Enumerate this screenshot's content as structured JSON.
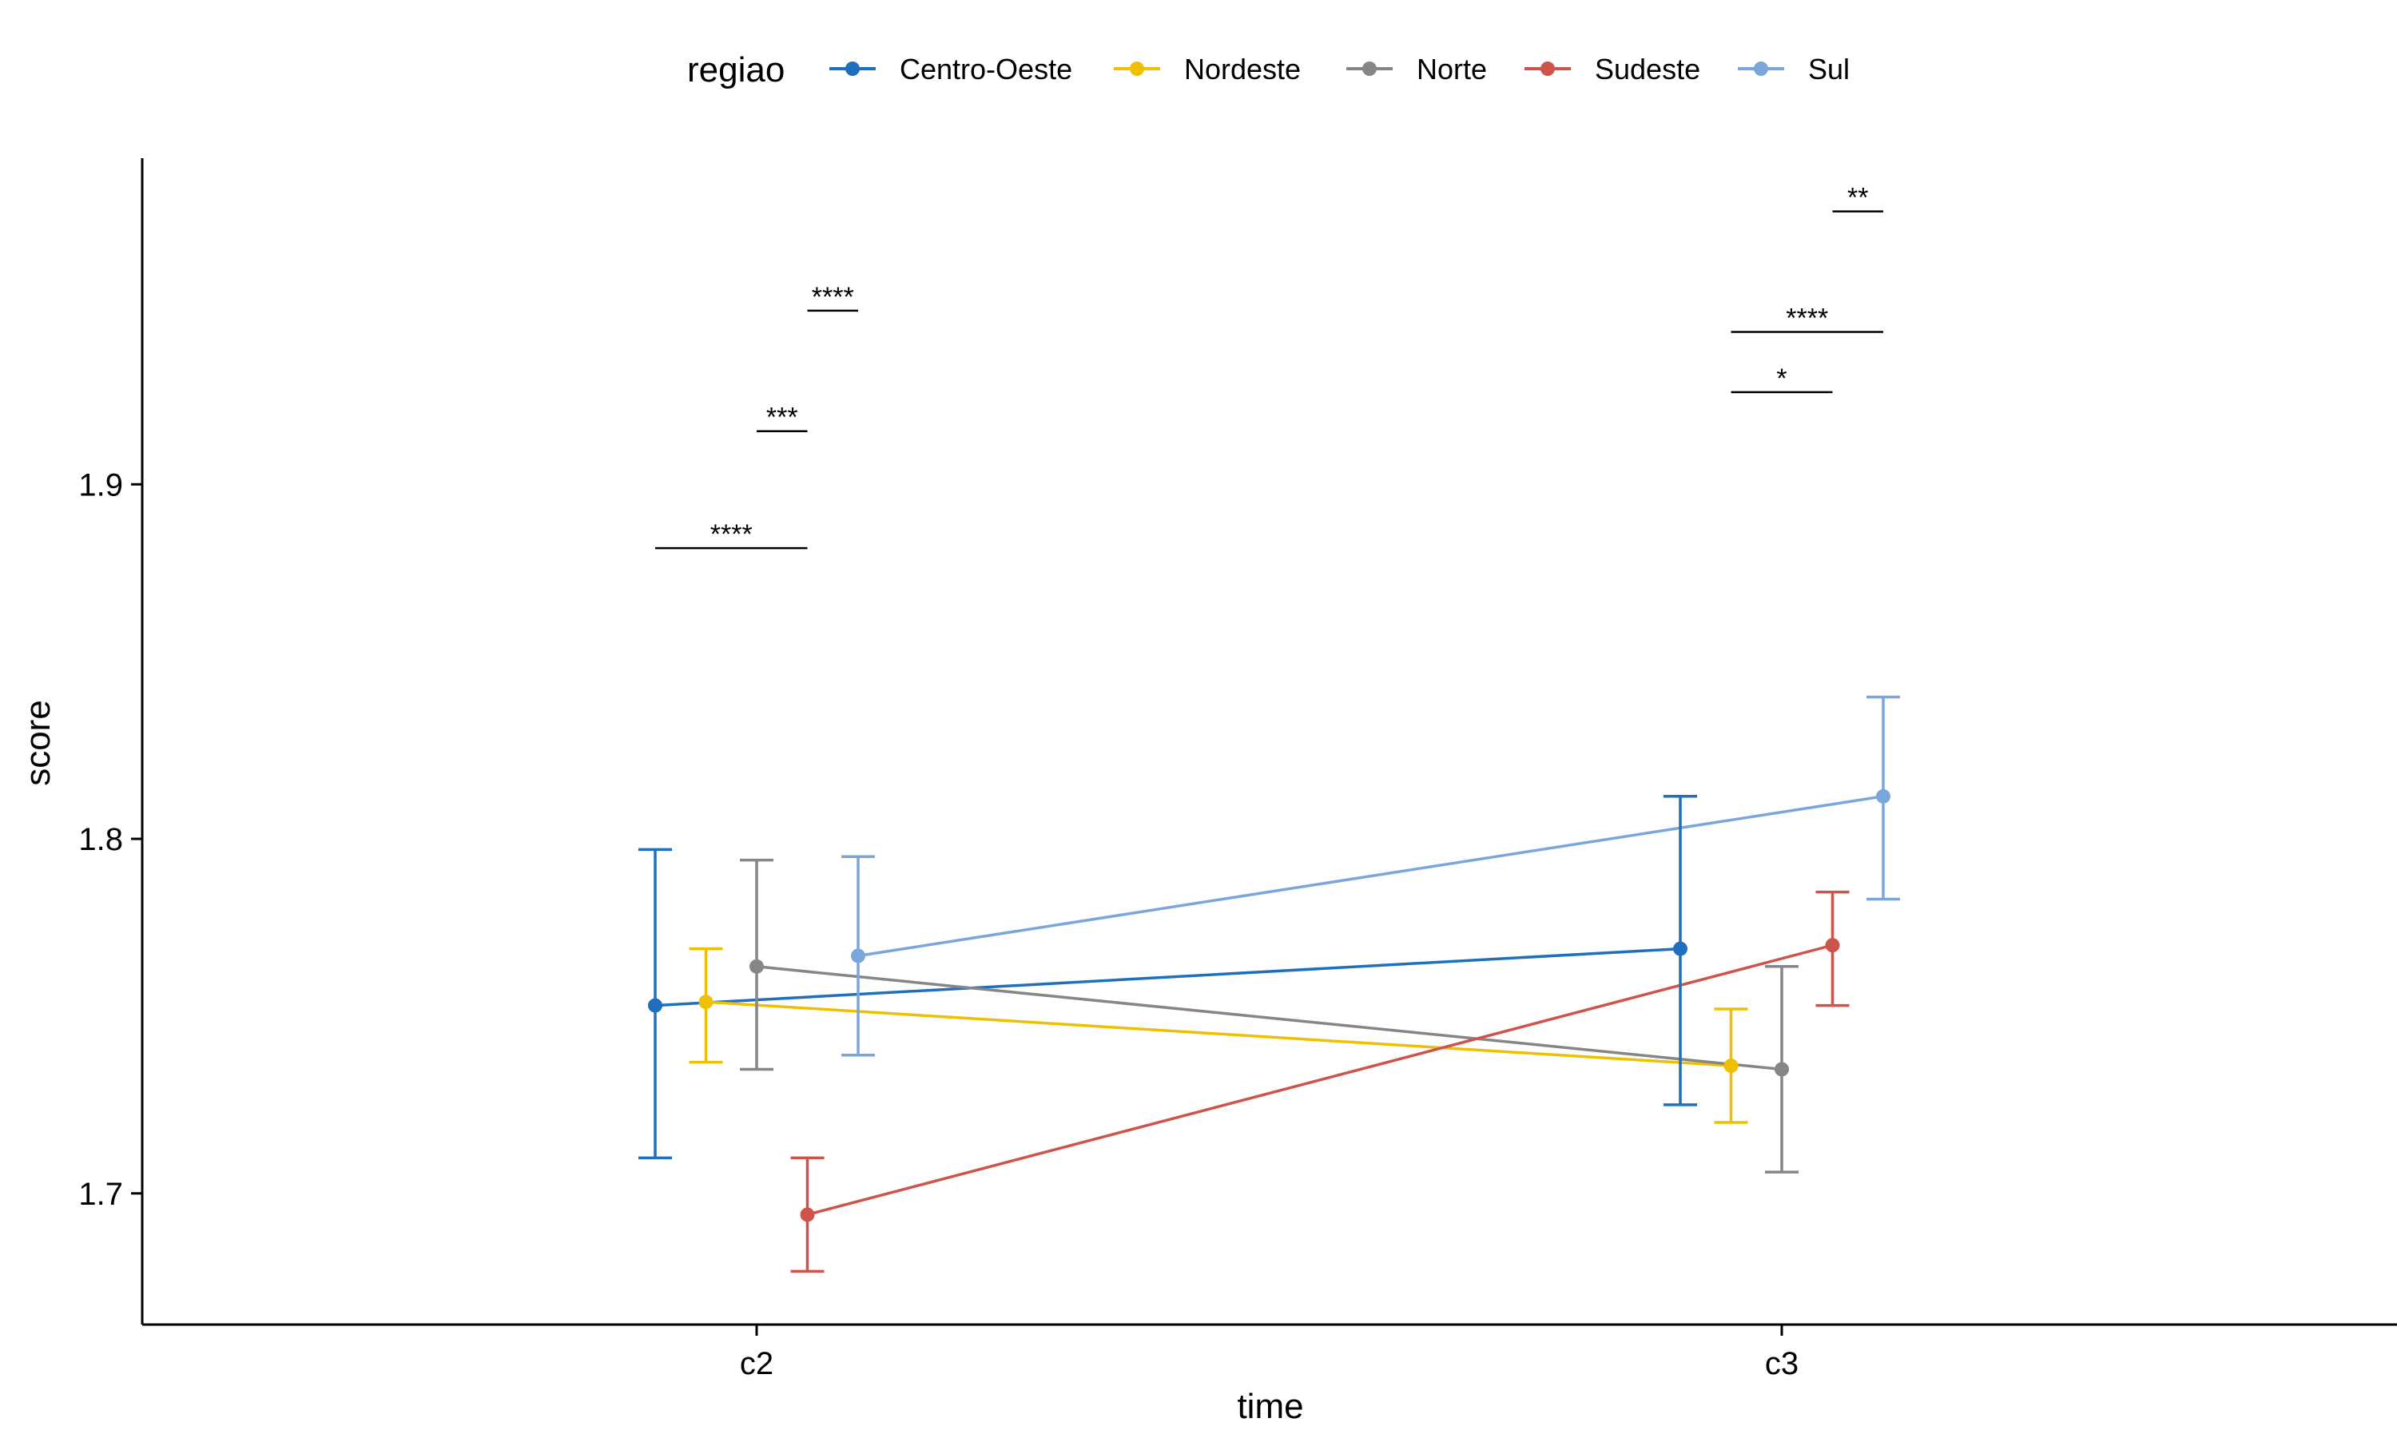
{
  "legend": {
    "title": "regiao"
  },
  "chart_data": {
    "type": "line",
    "xlabel": "time",
    "ylabel": "score",
    "categories": [
      "c2",
      "c3"
    ],
    "ylim": [
      1.663,
      1.992
    ],
    "yticks": [
      1.7,
      1.8,
      1.9
    ],
    "grid": false,
    "legend_position": "top",
    "series": [
      {
        "name": "Centro-Oeste",
        "color": "#1f6fbd",
        "values": [
          1.753,
          1.769
        ],
        "err_low": [
          1.71,
          1.725
        ],
        "err_high": [
          1.797,
          1.812
        ]
      },
      {
        "name": "Nordeste",
        "color": "#efc000",
        "values": [
          1.754,
          1.736
        ],
        "err_low": [
          1.737,
          1.72
        ],
        "err_high": [
          1.769,
          1.752
        ]
      },
      {
        "name": "Norte",
        "color": "#868686",
        "values": [
          1.764,
          1.735
        ],
        "err_low": [
          1.735,
          1.706
        ],
        "err_high": [
          1.794,
          1.764
        ]
      },
      {
        "name": "Sudeste",
        "color": "#cd534c",
        "values": [
          1.694,
          1.77
        ],
        "err_low": [
          1.678,
          1.753
        ],
        "err_high": [
          1.71,
          1.785
        ]
      },
      {
        "name": "Sul",
        "color": "#7aa6dc",
        "values": [
          1.767,
          1.812
        ],
        "err_low": [
          1.739,
          1.783
        ],
        "err_high": [
          1.795,
          1.84
        ]
      }
    ],
    "annotations": [
      {
        "label": "****",
        "time": "c2",
        "from": "Centro-Oeste",
        "to": "Sudeste",
        "y": 1.882
      },
      {
        "label": "***",
        "time": "c2",
        "from": "Norte",
        "to": "Sudeste",
        "y": 1.915
      },
      {
        "label": "****",
        "time": "c2",
        "from": "Sudeste",
        "to": "Sul",
        "y": 1.949
      },
      {
        "label": "*",
        "time": "c3",
        "from": "Nordeste",
        "to": "Sudeste",
        "y": 1.926
      },
      {
        "label": "****",
        "time": "c3",
        "from": "Nordeste",
        "to": "Sul",
        "y": 1.943
      },
      {
        "label": "**",
        "time": "c3",
        "from": "Sudeste",
        "to": "Sul",
        "y": 1.977
      }
    ]
  }
}
